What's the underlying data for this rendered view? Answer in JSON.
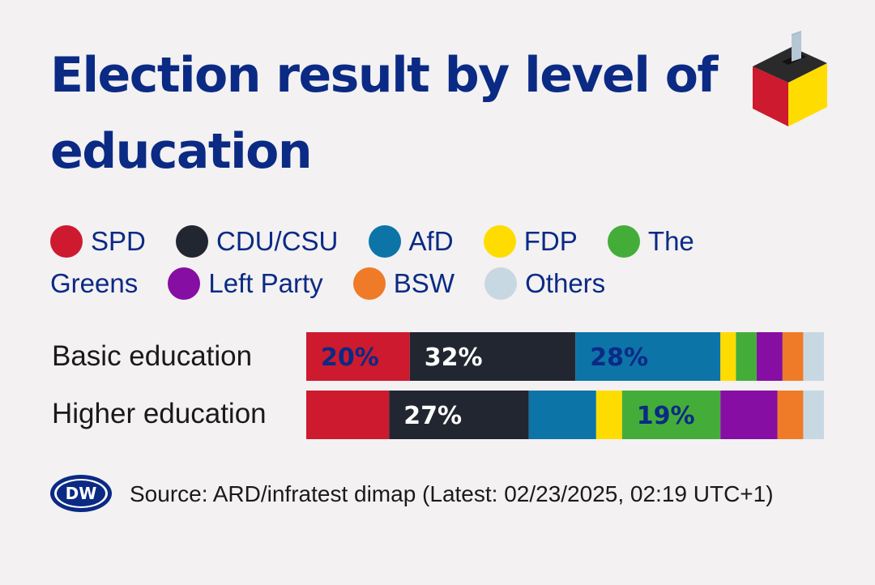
{
  "title": "Election result by level of education",
  "legend": [
    {
      "name": "SPD",
      "color": "#cd1a2e"
    },
    {
      "name": "CDU/CSU",
      "color": "#222631"
    },
    {
      "name": "AfD",
      "color": "#0d74a8"
    },
    {
      "name": "FDP",
      "color": "#ffdc00"
    },
    {
      "name": "The Greens",
      "color": "#44ad3a"
    },
    {
      "name": "Left Party",
      "color": "#860ea3"
    },
    {
      "name": "BSW",
      "color": "#ef7b28"
    },
    {
      "name": "Others",
      "color": "#c8d8e2"
    }
  ],
  "source": "Source: ARD/infratest dimap (Latest: 02/23/2025, 02:19 UTC+1)",
  "logo_text": "DW",
  "chart_data": {
    "type": "bar",
    "orientation": "horizontal",
    "stacked": true,
    "categories": [
      "Basic education",
      "Higher education"
    ],
    "series": [
      {
        "name": "SPD",
        "color": "#cd1a2e",
        "values": [
          20,
          16
        ],
        "labels": [
          "20%",
          ""
        ],
        "label_color": "#0a2a84"
      },
      {
        "name": "CDU/CSU",
        "color": "#222631",
        "values": [
          32,
          27
        ],
        "labels": [
          "32%",
          "27%"
        ],
        "label_color": "#ffffff"
      },
      {
        "name": "AfD",
        "color": "#0d74a8",
        "values": [
          28,
          13
        ],
        "labels": [
          "28%",
          ""
        ],
        "label_color": "#0a2a84"
      },
      {
        "name": "FDP",
        "color": "#ffdc00",
        "values": [
          3,
          5
        ],
        "labels": [
          "",
          ""
        ],
        "label_color": "#0a2a84"
      },
      {
        "name": "The Greens",
        "color": "#44ad3a",
        "values": [
          4,
          19
        ],
        "labels": [
          "",
          "19%"
        ],
        "label_color": "#0a2a84"
      },
      {
        "name": "Left Party",
        "color": "#860ea3",
        "values": [
          5,
          11
        ],
        "labels": [
          "",
          ""
        ],
        "label_color": "#ffffff"
      },
      {
        "name": "BSW",
        "color": "#ef7b28",
        "values": [
          4,
          5
        ],
        "labels": [
          "",
          ""
        ],
        "label_color": "#0a2a84"
      },
      {
        "name": "Others",
        "color": "#c8d8e2",
        "values": [
          4,
          4
        ],
        "labels": [
          "",
          ""
        ],
        "label_color": "#0a2a84"
      }
    ],
    "xlim": [
      0,
      100
    ],
    "grid": false,
    "legend_position": "top"
  }
}
